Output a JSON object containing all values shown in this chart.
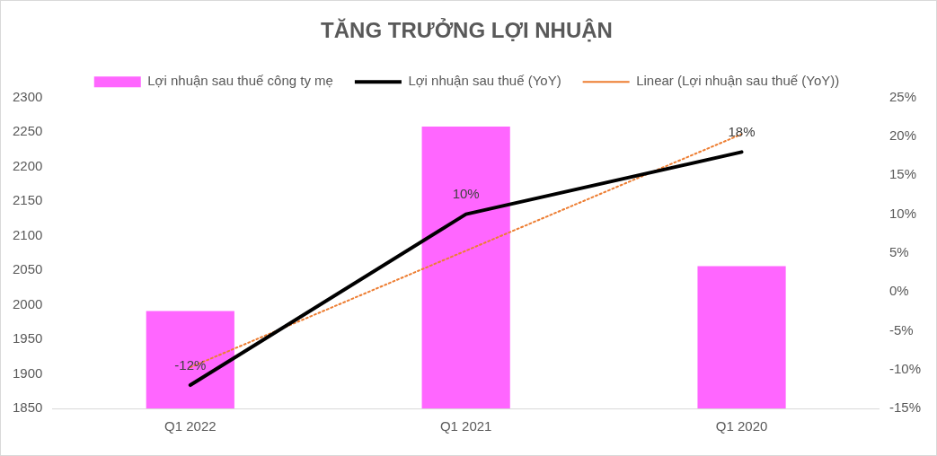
{
  "chart_data": {
    "type": "bar",
    "title": "TĂNG TRƯỞNG LỢI NHUẬN",
    "categories": [
      "Q1 2022",
      "Q1 2021",
      "Q1 2020"
    ],
    "series": [
      {
        "name": "Lợi nhuận sau thuế công ty mẹ",
        "color": "#ff66ff",
        "values": [
          1991,
          2258,
          2056
        ]
      },
      {
        "name": "Lợi nhuận sau thuế (YoY)",
        "type": "line",
        "axis": "y2",
        "color": "#000000",
        "line_style": "solid",
        "values": [
          -12,
          10,
          18
        ],
        "value_labels": [
          "-12%",
          "10%",
          "18%"
        ]
      },
      {
        "name": "Linear (Lợi nhuận sau thuế (YoY))",
        "type": "line",
        "axis": "y2",
        "color": "#ed7d31",
        "line_style": "dotted",
        "values": [
          -9.7,
          5.3,
          20.3
        ]
      }
    ],
    "ylim": [
      1850,
      2300
    ],
    "yticks": [
      1850,
      1900,
      1950,
      2000,
      2050,
      2100,
      2150,
      2200,
      2250,
      2300
    ],
    "y2lim": [
      -15,
      25
    ],
    "y2ticks": [
      {
        "value": -15,
        "label": "-15%"
      },
      {
        "value": -10,
        "label": "-10%"
      },
      {
        "value": -5,
        "label": "-5%"
      },
      {
        "value": 0,
        "label": "0%"
      },
      {
        "value": 5,
        "label": "5%"
      },
      {
        "value": 10,
        "label": "10%"
      },
      {
        "value": 15,
        "label": "15%"
      },
      {
        "value": 20,
        "label": "20%"
      },
      {
        "value": 25,
        "label": "25%"
      }
    ],
    "grid": false,
    "legend": "top",
    "marker": "none"
  }
}
